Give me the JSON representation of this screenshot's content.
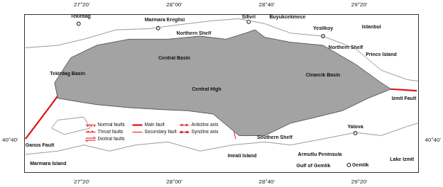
{
  "chart_data": {
    "type": "map",
    "grid": false,
    "xlim": [
      26.92,
      29.76
    ],
    "ylim": [
      40.55,
      41.12
    ],
    "xticks": [
      {
        "value": 27.3333,
        "label": "27°20'"
      },
      {
        "value": 28,
        "label": "28°00'"
      },
      {
        "value": 28.6667,
        "label": "28°40'"
      },
      {
        "value": 29.3333,
        "label": "29°20'"
      }
    ],
    "yticks": [
      {
        "value": 40.6667,
        "label": "40°40'"
      }
    ],
    "bathymetry": [
      [
        27.137,
        40.874
      ],
      [
        27.254,
        40.964
      ],
      [
        27.44,
        41.009
      ],
      [
        27.673,
        41.031
      ],
      [
        27.953,
        41.031
      ],
      [
        28.186,
        41.042
      ],
      [
        28.373,
        41.031
      ],
      [
        28.512,
        41.053
      ],
      [
        28.582,
        41.065
      ],
      [
        28.652,
        41.038
      ],
      [
        28.839,
        41.02
      ],
      [
        29.072,
        41.009
      ],
      [
        29.305,
        40.941
      ],
      [
        29.491,
        40.874
      ],
      [
        29.561,
        40.851
      ],
      [
        29.398,
        40.818
      ],
      [
        29.212,
        40.773
      ],
      [
        29.025,
        40.75
      ],
      [
        28.839,
        40.728
      ],
      [
        28.652,
        40.683
      ],
      [
        28.466,
        40.683
      ],
      [
        28.279,
        40.761
      ],
      [
        28.093,
        40.773
      ],
      [
        27.906,
        40.777
      ],
      [
        27.673,
        40.784
      ],
      [
        27.44,
        40.795
      ],
      [
        27.3,
        40.806
      ],
      [
        27.16,
        40.818
      ],
      [
        27.137,
        40.874
      ]
    ],
    "coastlines": [
      [
        [
          26.927,
          41.0
        ],
        [
          27.16,
          41.009
        ],
        [
          27.347,
          41.031
        ],
        [
          27.58,
          41.065
        ],
        [
          27.813,
          41.069
        ],
        [
          28.093,
          41.087
        ],
        [
          28.279,
          41.098
        ],
        [
          28.466,
          41.105
        ],
        [
          28.652,
          41.087
        ],
        [
          28.839,
          41.053
        ],
        [
          29.072,
          41.042
        ],
        [
          29.305,
          40.997
        ],
        [
          29.491,
          40.919
        ],
        [
          29.678,
          40.885
        ],
        [
          29.757,
          40.88
        ]
      ],
      [
        [
          26.927,
          40.615
        ],
        [
          27.16,
          40.627
        ],
        [
          27.347,
          40.649
        ],
        [
          27.533,
          40.627
        ],
        [
          27.72,
          40.649
        ],
        [
          27.953,
          40.66
        ],
        [
          28.186,
          40.627
        ],
        [
          28.419,
          40.649
        ],
        [
          28.652,
          40.66
        ],
        [
          28.839,
          40.649
        ],
        [
          29.072,
          40.671
        ],
        [
          29.305,
          40.694
        ],
        [
          29.491,
          40.683
        ],
        [
          29.678,
          40.716
        ],
        [
          29.757,
          40.728
        ]
      ],
      [
        [
          27.16,
          40.739
        ],
        [
          27.347,
          40.75
        ],
        [
          27.394,
          40.71
        ],
        [
          27.207,
          40.687
        ],
        [
          27.114,
          40.71
        ],
        [
          27.16,
          40.739
        ]
      ]
    ],
    "main_fault": [
      [
        26.927,
        40.671
      ],
      [
        27.114,
        40.795
      ],
      [
        27.23,
        40.874
      ],
      [
        27.487,
        40.885
      ],
      [
        27.813,
        40.907
      ],
      [
        28.093,
        40.941
      ],
      [
        28.373,
        40.952
      ],
      [
        28.559,
        40.97
      ],
      [
        28.746,
        40.986
      ],
      [
        28.979,
        40.986
      ],
      [
        29.212,
        40.919
      ],
      [
        29.398,
        40.862
      ],
      [
        29.561,
        40.851
      ],
      [
        29.748,
        40.845
      ]
    ],
    "secondary_faults": [
      [
        [
          28.489,
          40.941
        ],
        [
          28.396,
          40.773
        ],
        [
          28.442,
          40.671
        ]
      ],
      [
        [
          28.839,
          40.862
        ],
        [
          29.118,
          40.862
        ],
        [
          29.491,
          40.851
        ]
      ],
      [
        [
          27.72,
          40.975
        ],
        [
          28.093,
          40.986
        ],
        [
          28.373,
          40.997
        ]
      ]
    ],
    "towns": [
      {
        "lon": 27.31,
        "lat": 41.087
      },
      {
        "lon": 27.883,
        "lat": 41.071
      },
      {
        "lon": 28.536,
        "lat": 41.094
      },
      {
        "lon": 29.072,
        "lat": 41.042
      },
      {
        "lon": 29.305,
        "lat": 40.692
      },
      {
        "lon": 29.258,
        "lat": 40.577
      }
    ],
    "labels": [
      {
        "text": "Tekirdag",
        "lon": 27.324,
        "lat": 41.114
      },
      {
        "text": "Marmara Ereglisi",
        "lon": 27.93,
        "lat": 41.1
      },
      {
        "text": "Silivri",
        "lon": 28.536,
        "lat": 41.11
      },
      {
        "text": "Buyukcekmece",
        "lon": 28.816,
        "lat": 41.11
      },
      {
        "text": "Yesilkoy",
        "lon": 29.072,
        "lat": 41.069
      },
      {
        "text": "Istanbul",
        "lon": 29.421,
        "lat": 41.076
      },
      {
        "text": "Northern Shelf",
        "lon": 28.14,
        "lat": 41.053
      },
      {
        "text": "Northern Shelf",
        "lon": 29.235,
        "lat": 41.002
      },
      {
        "text": "Prince Island",
        "lon": 29.491,
        "lat": 40.975
      },
      {
        "text": "Tekirdag Basin",
        "lon": 27.23,
        "lat": 40.907
      },
      {
        "text": "Central Basin",
        "lon": 28.0,
        "lat": 40.964
      },
      {
        "text": "Central High",
        "lon": 28.233,
        "lat": 40.851
      },
      {
        "text": "Cinarcik Basin",
        "lon": 29.072,
        "lat": 40.901
      },
      {
        "text": "Ganos Fault",
        "lon": 27.03,
        "lat": 40.649
      },
      {
        "text": "Izmit Fault",
        "lon": 29.655,
        "lat": 40.818
      },
      {
        "text": "Marmara Island",
        "lon": 27.091,
        "lat": 40.582
      },
      {
        "text": "Southern Shelf",
        "lon": 28.723,
        "lat": 40.676
      },
      {
        "text": "Imrali Island",
        "lon": 28.489,
        "lat": 40.609
      },
      {
        "text": "Armutlu Peninsula",
        "lon": 29.049,
        "lat": 40.615
      },
      {
        "text": "Yalova",
        "lon": 29.305,
        "lat": 40.714
      },
      {
        "text": "Gulf of Gemlik",
        "lon": 29.002,
        "lat": 40.575
      },
      {
        "text": "Gemlik",
        "lon": 29.342,
        "lat": 40.577
      },
      {
        "text": "Lake Izmit",
        "lon": 29.641,
        "lat": 40.597
      }
    ],
    "key": [
      {
        "text": "Normal faults",
        "line_style": "normal"
      },
      {
        "text": "Main fault",
        "line_style": "main"
      },
      {
        "text": "Anticline axis",
        "line_style": "anticline"
      },
      {
        "text": "Thrust faults",
        "line_style": "thrust"
      },
      {
        "text": "Secondary fault",
        "line_style": "secondary"
      },
      {
        "text": "Syncline axis",
        "line_style": "syncline"
      },
      {
        "text": "Dextral faults",
        "line_style": "dextral"
      }
    ]
  }
}
